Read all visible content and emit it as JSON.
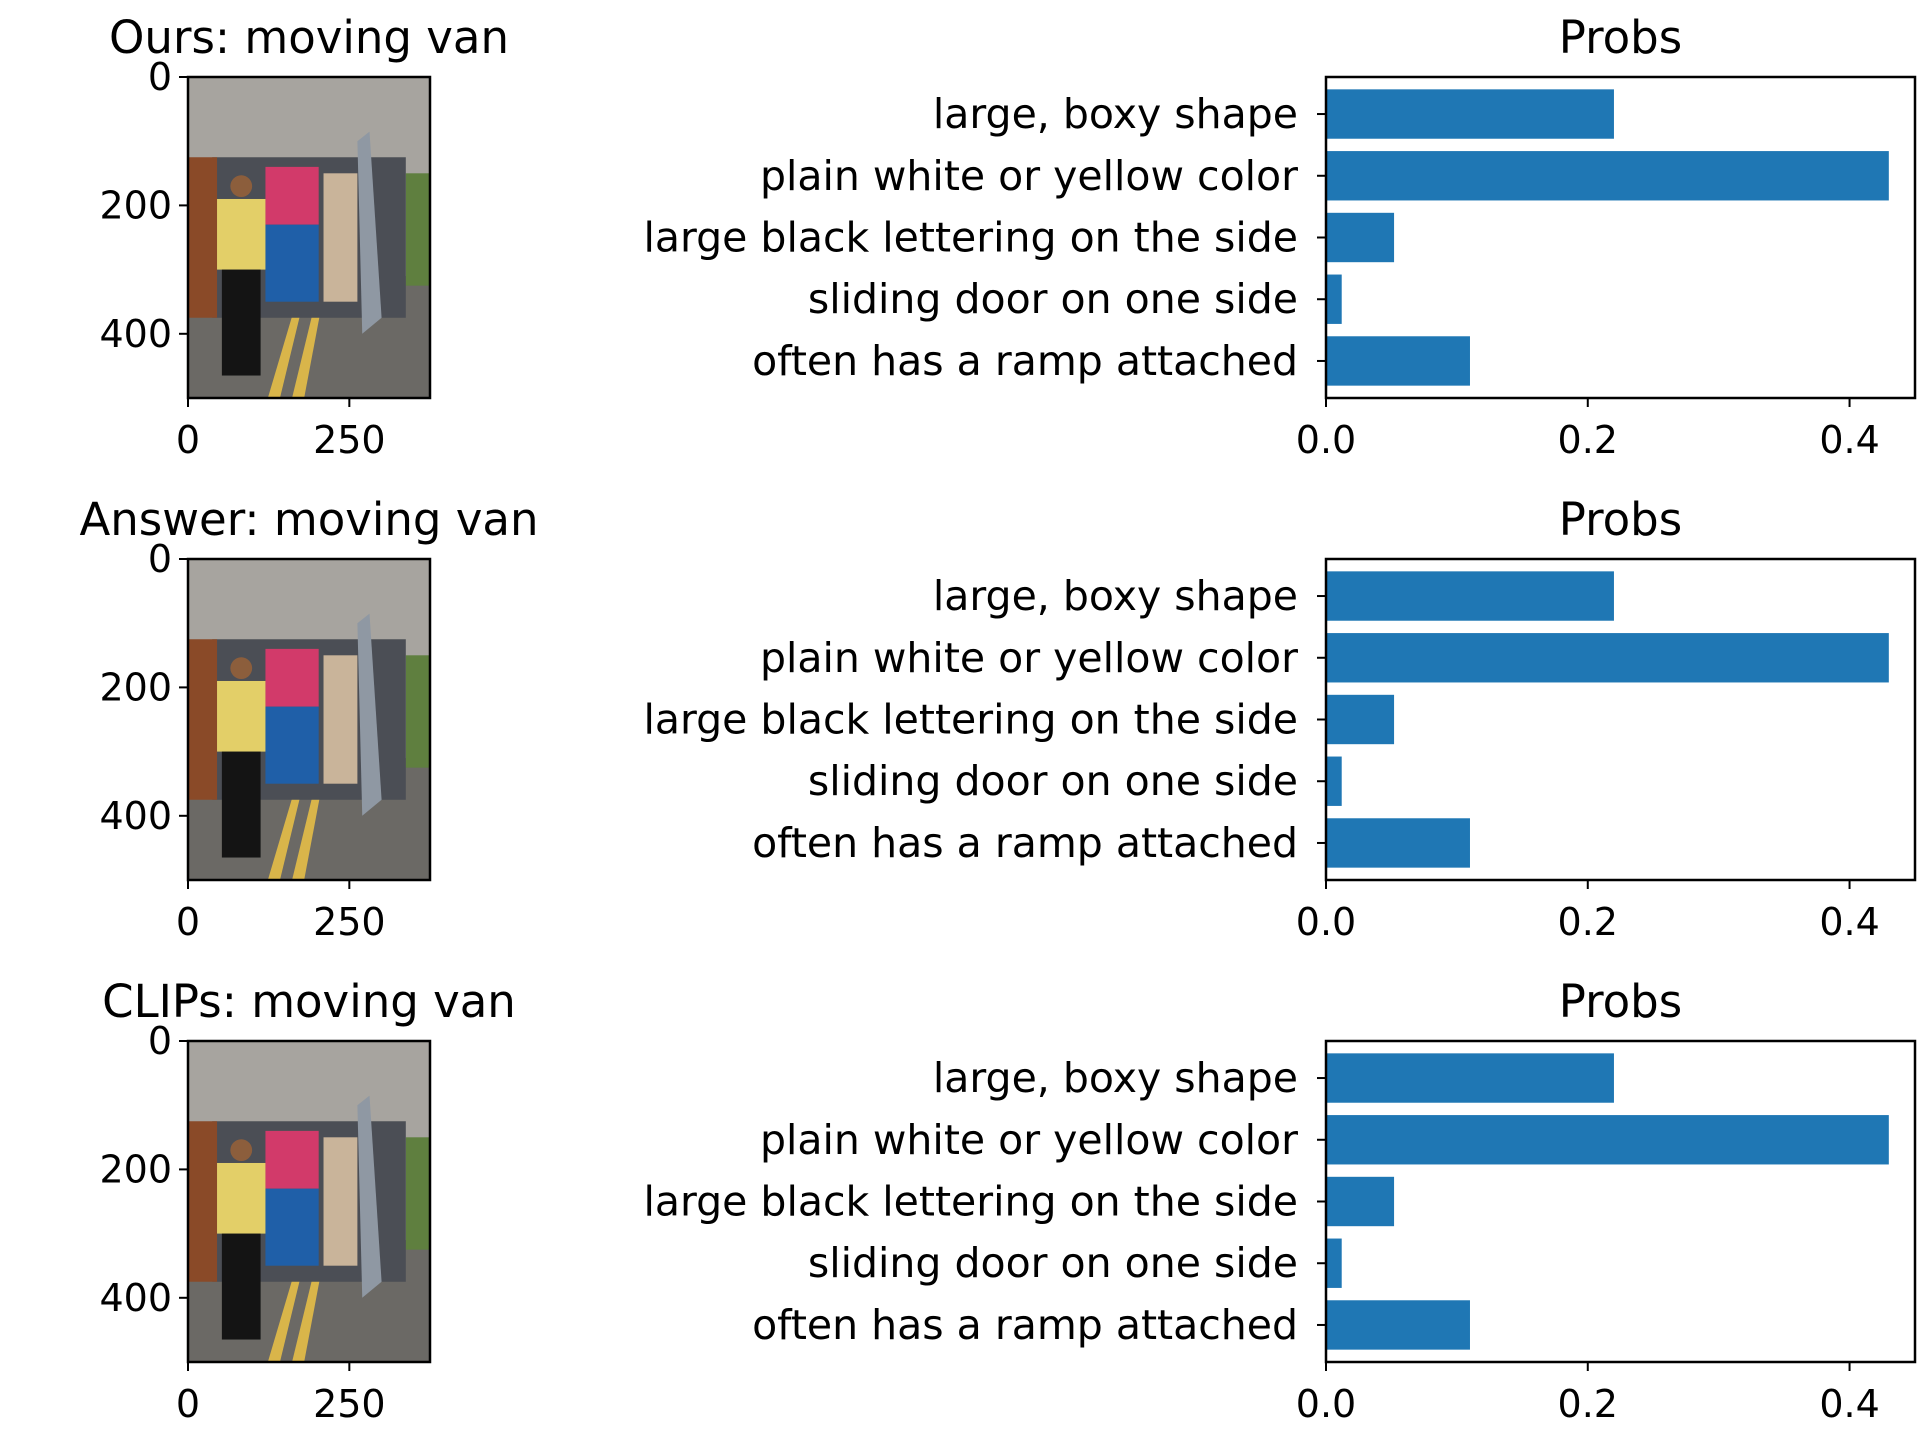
{
  "colors": {
    "bar": "#1f77b4",
    "axis": "#000000",
    "photo_bg": "#6d6a66"
  },
  "panels": [
    {
      "image_title": "Ours: moving van",
      "bar_title": "Probs"
    },
    {
      "image_title": "Answer: moving van",
      "bar_title": "Probs"
    },
    {
      "image_title": "CLIPs: moving van",
      "bar_title": "Probs"
    }
  ],
  "image_axes": {
    "x_ticks": [
      0,
      250
    ],
    "y_ticks": [
      0,
      200,
      400
    ],
    "x_range": [
      0,
      375
    ],
    "y_range": [
      0,
      500
    ]
  },
  "chart_data": [
    {
      "type": "bar",
      "orientation": "horizontal",
      "title": "Probs",
      "categories": [
        "large, boxy shape",
        "plain white or yellow color",
        "large black lettering on the side",
        "sliding door on one side",
        "often has a ramp attached"
      ],
      "values": [
        0.22,
        0.43,
        0.052,
        0.012,
        0.11
      ],
      "xlim": [
        0,
        0.45
      ],
      "x_ticks": [
        "0.0",
        "0.2",
        "0.4"
      ],
      "grid": false
    },
    {
      "type": "bar",
      "orientation": "horizontal",
      "title": "Probs",
      "categories": [
        "large, boxy shape",
        "plain white or yellow color",
        "large black lettering on the side",
        "sliding door on one side",
        "often has a ramp attached"
      ],
      "values": [
        0.22,
        0.43,
        0.052,
        0.012,
        0.11
      ],
      "xlim": [
        0,
        0.45
      ],
      "x_ticks": [
        "0.0",
        "0.2",
        "0.4"
      ],
      "grid": false
    },
    {
      "type": "bar",
      "orientation": "horizontal",
      "title": "Probs",
      "categories": [
        "large, boxy shape",
        "plain white or yellow color",
        "large black lettering on the side",
        "sliding door on one side",
        "often has a ramp attached"
      ],
      "values": [
        0.22,
        0.43,
        0.052,
        0.012,
        0.11
      ],
      "xlim": [
        0,
        0.45
      ],
      "x_ticks": [
        "0.0",
        "0.2",
        "0.4"
      ],
      "grid": false
    }
  ]
}
